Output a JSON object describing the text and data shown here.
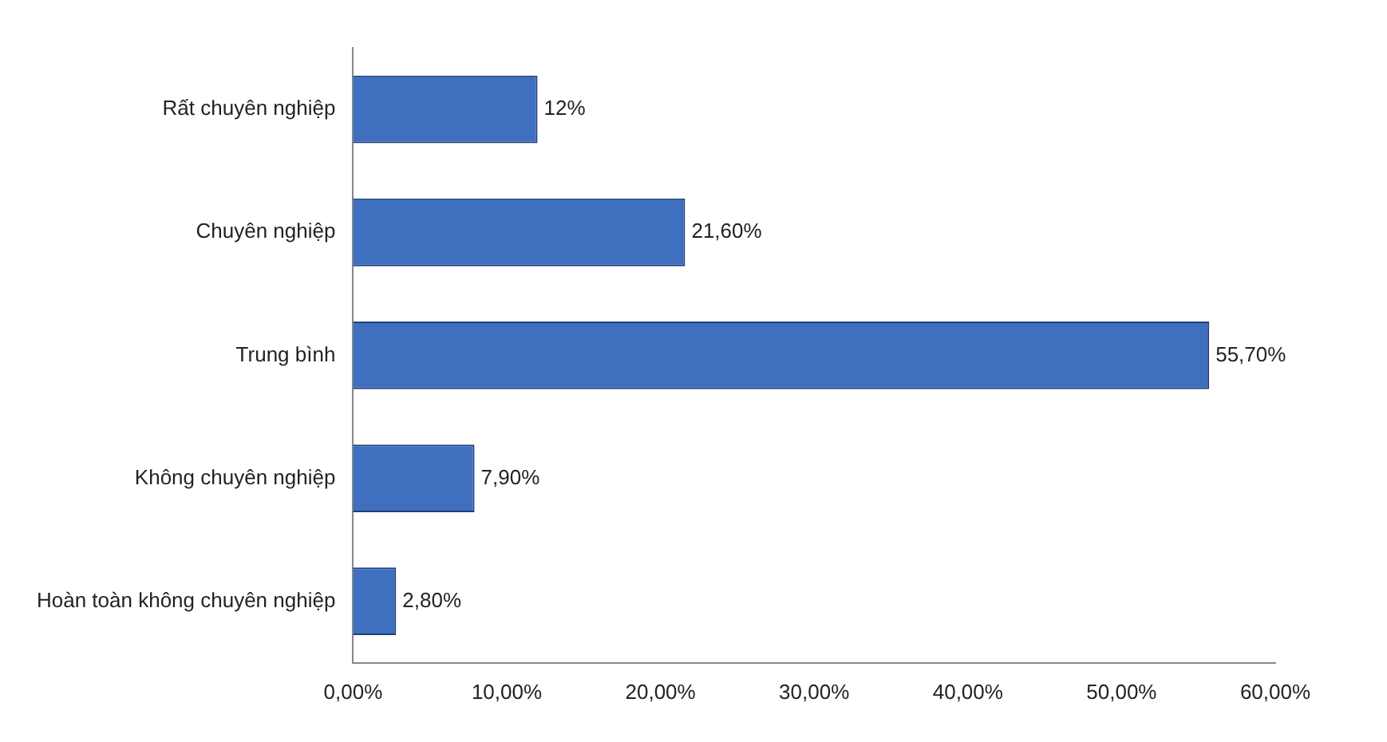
{
  "chart_data": {
    "type": "bar",
    "orientation": "horizontal",
    "categories": [
      "Rất chuyên nghiệp",
      "Chuyên nghiệp",
      "Trung bình",
      "Không chuyên nghiệp",
      "Hoàn toàn không chuyên nghiệp"
    ],
    "values": [
      12,
      21.6,
      55.7,
      7.9,
      2.8
    ],
    "value_labels": [
      "12%",
      "21,60%",
      "55,70%",
      "7,90%",
      "2,80%"
    ],
    "color": "#3f6fbf",
    "xlim": [
      0,
      60
    ],
    "xticks": [
      {
        "value": 0,
        "label": "0,00%"
      },
      {
        "value": 10,
        "label": "10,00%"
      },
      {
        "value": 20,
        "label": "20,00%"
      },
      {
        "value": 30,
        "label": "30,00%"
      },
      {
        "value": 40,
        "label": "40,00%"
      },
      {
        "value": 50,
        "label": "50,00%"
      },
      {
        "value": 60,
        "label": "60,00%"
      }
    ],
    "grid": false,
    "legend": false
  }
}
